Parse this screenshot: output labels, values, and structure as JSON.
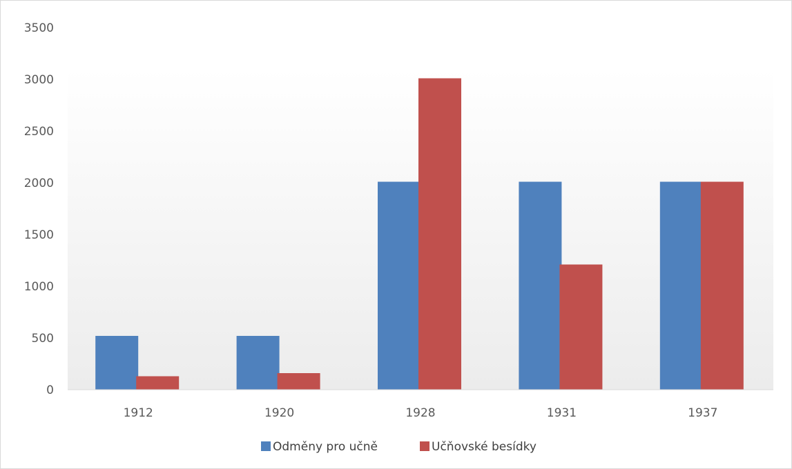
{
  "chart_data": {
    "type": "bar",
    "categories": [
      "1912",
      "1920",
      "1928",
      "1931",
      "1937"
    ],
    "series": [
      {
        "name": "Odměny pro učně",
        "values": [
          520,
          520,
          2010,
          2010,
          2010
        ],
        "color": "#4f81bd"
      },
      {
        "name": "Učňovské besídky",
        "values": [
          130,
          160,
          3010,
          1210,
          2010
        ],
        "color": "#c0504d"
      }
    ],
    "ylim": [
      0,
      3500
    ],
    "yticks": [
      "0",
      "500",
      "1000",
      "1500",
      "2000",
      "2500",
      "3000",
      "3500"
    ],
    "grid": false,
    "legend_position": "bottom-center"
  }
}
